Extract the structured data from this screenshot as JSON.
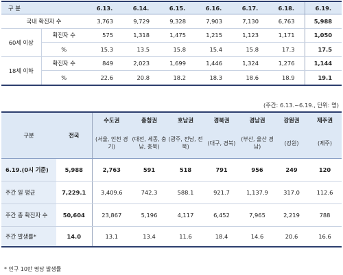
{
  "table1": {
    "header_label": "구 분",
    "dates": [
      "6.13.",
      "6.14.",
      "6.15.",
      "6.16.",
      "6.17.",
      "6.18.",
      "6.19."
    ],
    "domestic": {
      "label": "국내 확진자 수",
      "values": [
        "3,763",
        "9,729",
        "9,328",
        "7,903",
        "7,130",
        "6,763",
        "5,988"
      ]
    },
    "over60": {
      "group_label": "60세 이상",
      "cases_label": "확진자 수",
      "cases": [
        "575",
        "1,318",
        "1,475",
        "1,215",
        "1,123",
        "1,171",
        "1,050"
      ],
      "pct_label": "%",
      "pct": [
        "15.3",
        "13.5",
        "15.8",
        "15.4",
        "15.8",
        "17.3",
        "17.5"
      ]
    },
    "under18": {
      "group_label": "18세 이하",
      "cases_label": "확진자 수",
      "cases": [
        "849",
        "2,023",
        "1,699",
        "1,446",
        "1,324",
        "1,276",
        "1,144"
      ],
      "pct_label": "%",
      "pct": [
        "22.6",
        "20.8",
        "18.2",
        "18.3",
        "18.6",
        "18.9",
        "19.1"
      ]
    }
  },
  "period_note": "(주간: 6.13.~6.19., 단위: 명)",
  "table2": {
    "header_label": "구분",
    "national_label": "전국",
    "regions": [
      {
        "name": "수도권",
        "detail": "(서울, 인천 경기)"
      },
      {
        "name": "충청권",
        "detail": "(대전, 세종, 충남, 충북)"
      },
      {
        "name": "호남권",
        "detail": "(광주, 전남, 전북)"
      },
      {
        "name": "경북권",
        "detail": "(대구, 경북)"
      },
      {
        "name": "경남권",
        "detail": "(부산, 울산 경남)"
      },
      {
        "name": "강원권",
        "detail": "(강원)"
      },
      {
        "name": "제주권",
        "detail": "(제주)"
      }
    ],
    "rows": [
      {
        "label": "6.19.(0시 기준)",
        "national": "5,988",
        "values": [
          "2,763",
          "591",
          "518",
          "791",
          "956",
          "249",
          "120"
        ]
      },
      {
        "label": "주간 일 평균",
        "national": "7,229.1",
        "values": [
          "3,409.6",
          "742.3",
          "588.1",
          "921.7",
          "1,137.9",
          "317.0",
          "112.6"
        ]
      },
      {
        "label": "주간 총 확진자 수",
        "national": "50,604",
        "values": [
          "23,867",
          "5,196",
          "4,117",
          "6,452",
          "7,965",
          "2,219",
          "788"
        ]
      },
      {
        "label": "주간 발생률*",
        "national": "14.0",
        "values": [
          "13.1",
          "13.4",
          "11.6",
          "18.4",
          "14.6",
          "20.6",
          "16.6"
        ]
      }
    ]
  },
  "footnote": "* 인구 10만 명당 발생률"
}
